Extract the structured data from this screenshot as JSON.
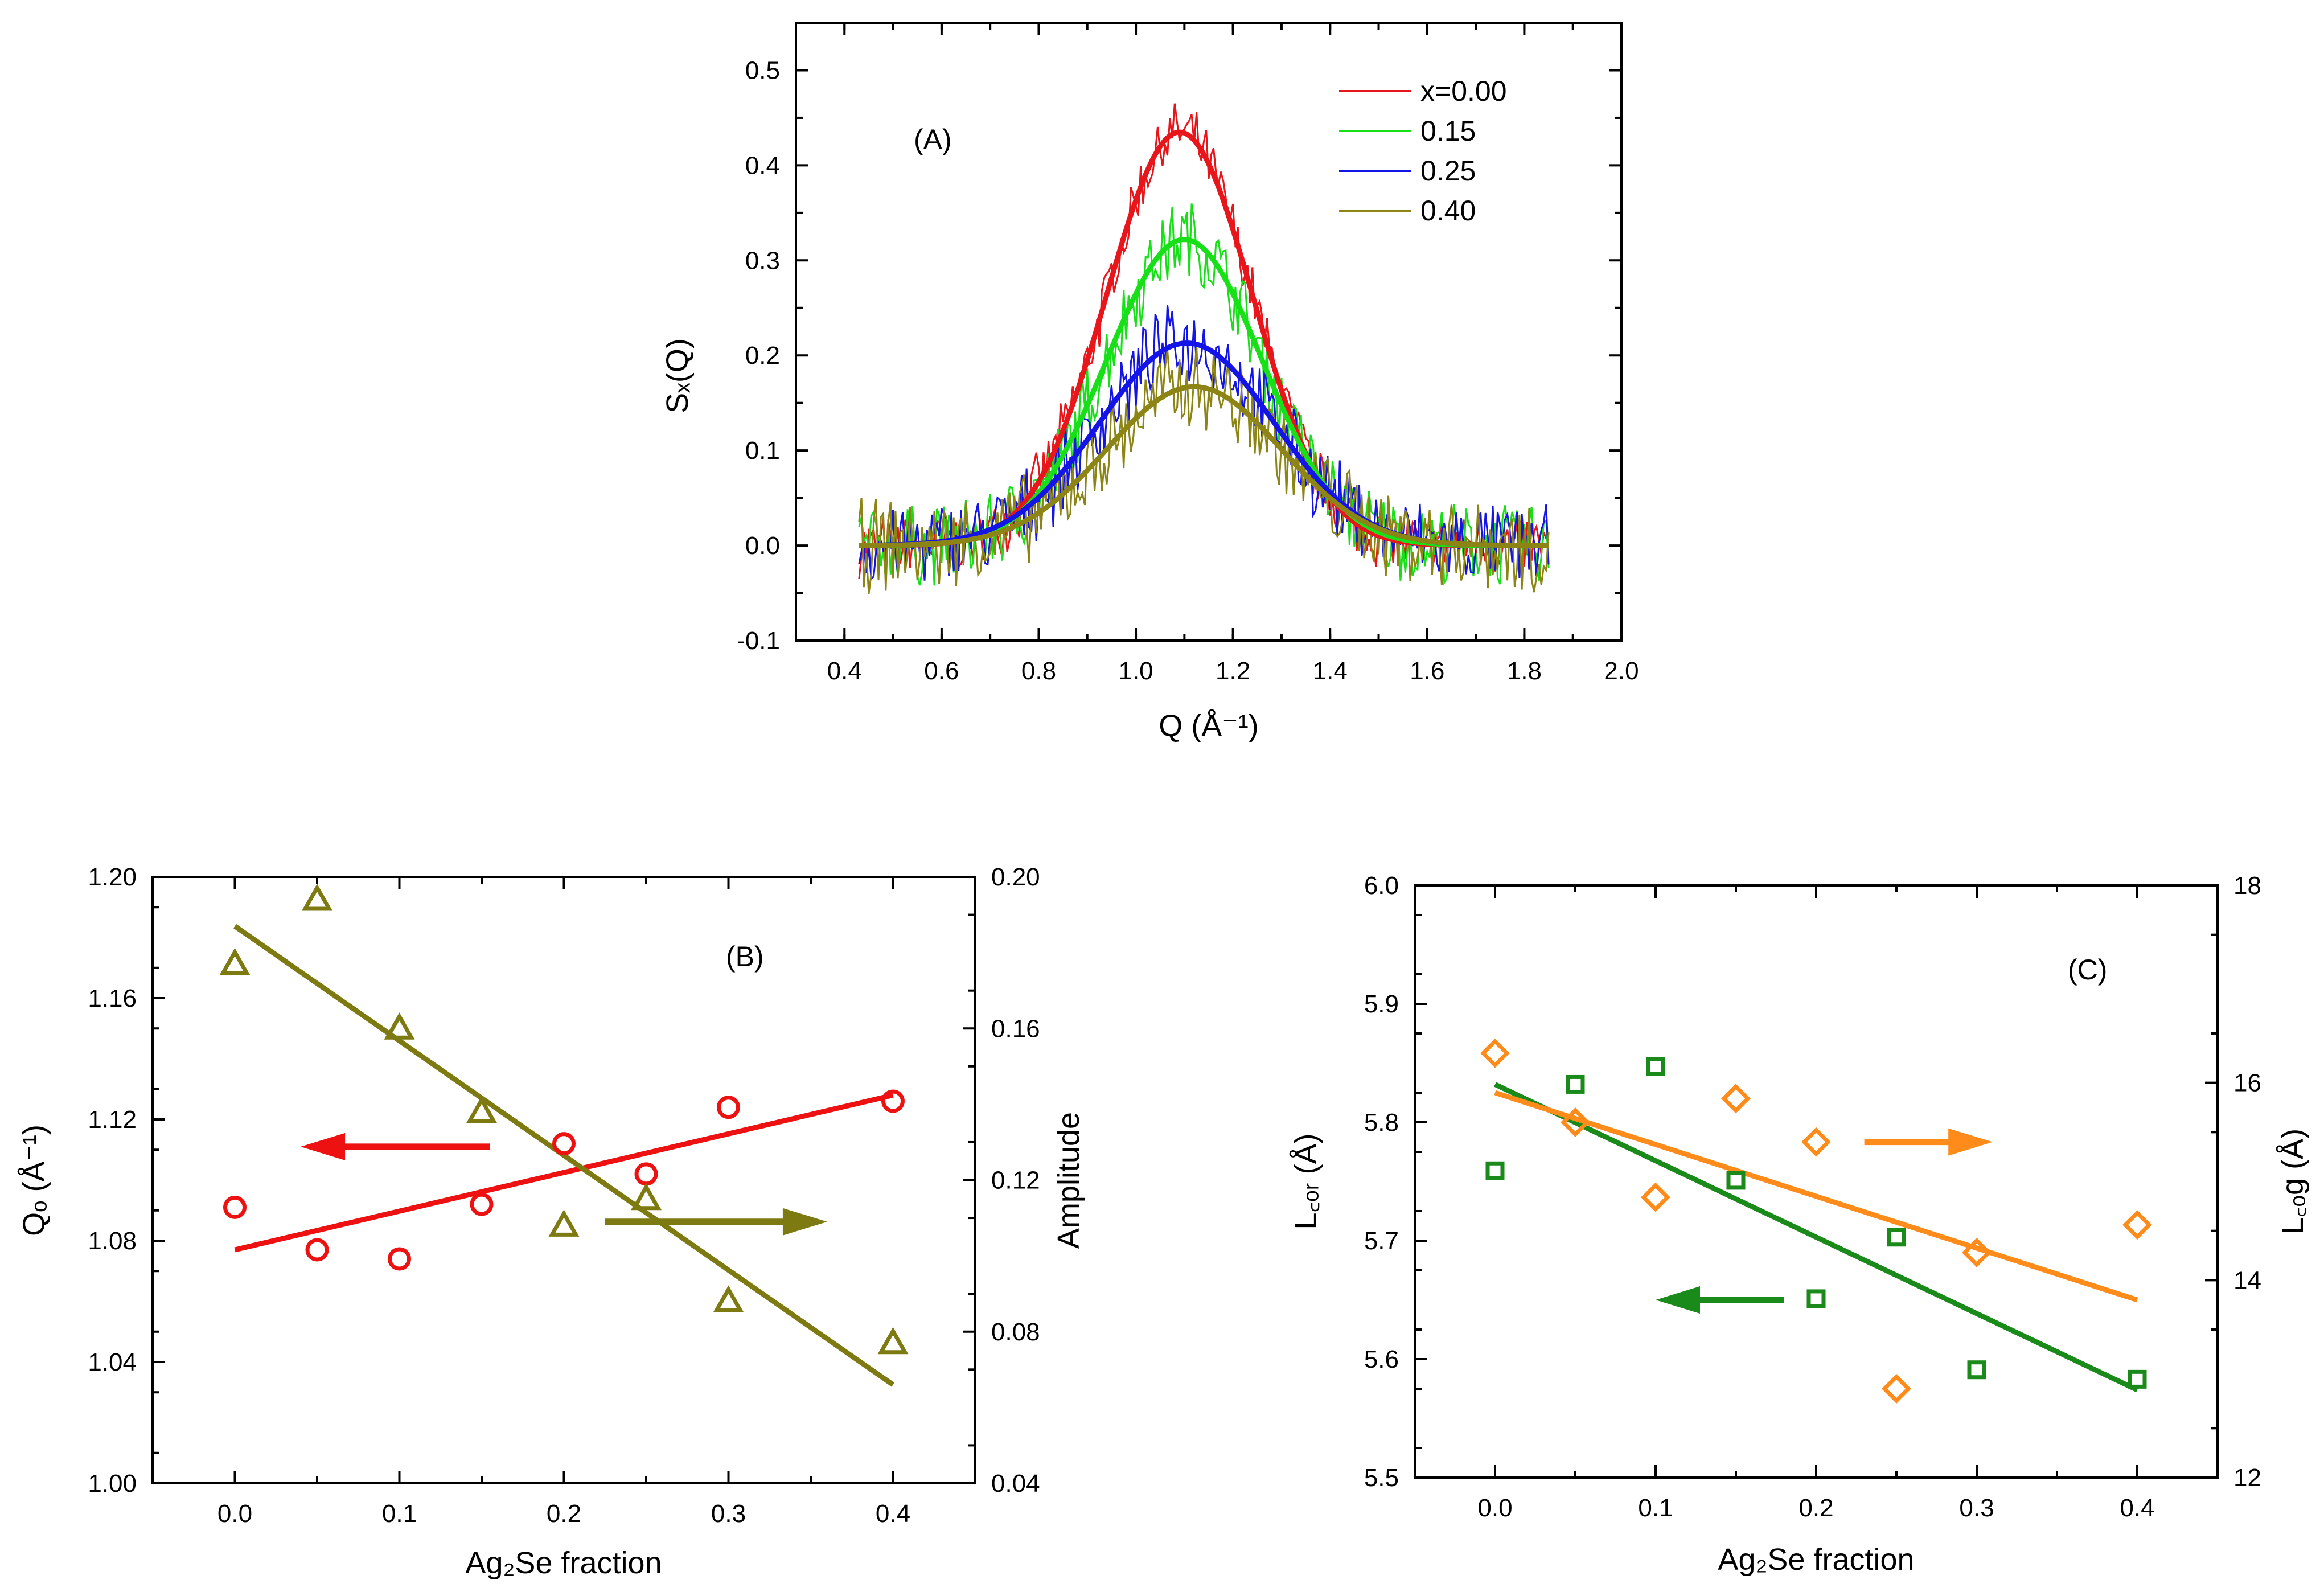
{
  "chart_data": [
    {
      "id": "A",
      "type": "line",
      "panel_label": "(A)",
      "xlabel": "Q (Å⁻¹)",
      "ylabel": "Sₓ(Q)",
      "xlim": [
        0.3,
        2.0
      ],
      "ylim": [
        -0.1,
        0.55
      ],
      "xticks": [
        "0.4",
        "0.6",
        "0.8",
        "1.0",
        "1.2",
        "1.4",
        "1.6",
        "1.8",
        "2.0"
      ],
      "yticks": [
        "-0.1",
        "0.0",
        "0.1",
        "0.2",
        "0.3",
        "0.4",
        "0.5"
      ],
      "x_range": [
        0.43,
        1.85
      ],
      "legend_position": "top-right",
      "series": [
        {
          "name": "x=0.00",
          "color": "#e8161b",
          "fit": {
            "amplitude": 0.435,
            "center": 1.09,
            "sigma": 0.15
          },
          "noise_amplitude": 0.03
        },
        {
          "name": "0.15",
          "color": "#18e018",
          "fit": {
            "amplitude": 0.322,
            "center": 1.1,
            "sigma": 0.16
          },
          "noise_amplitude": 0.04
        },
        {
          "name": "0.25",
          "color": "#1414e6",
          "fit": {
            "amplitude": 0.213,
            "center": 1.105,
            "sigma": 0.18
          },
          "noise_amplitude": 0.04
        },
        {
          "name": "0.40",
          "color": "#8c8515",
          "fit": {
            "amplitude": 0.167,
            "center": 1.12,
            "sigma": 0.18
          },
          "noise_amplitude": 0.045
        }
      ]
    },
    {
      "id": "B",
      "type": "scatter",
      "panel_label": "(B)",
      "xlabel": "Ag₂Se fraction",
      "ylabel_left": "Qₒ (Å⁻¹)",
      "ylabel_right": "Amplitude",
      "xlim": [
        -0.05,
        0.45
      ],
      "ylim_left": [
        1.0,
        1.2
      ],
      "ylim_right": [
        0.04,
        0.2
      ],
      "xticks": [
        "0.0",
        "0.1",
        "0.2",
        "0.3",
        "0.4"
      ],
      "yticks_left": [
        "1.00",
        "1.04",
        "1.08",
        "1.12",
        "1.16",
        "1.20"
      ],
      "yticks_right": [
        "0.04",
        "0.08",
        "0.12",
        "0.16",
        "0.20"
      ],
      "series": [
        {
          "name": "Q0",
          "axis": "left",
          "marker": "circle",
          "color": "#ee1111",
          "x": [
            0.0,
            0.05,
            0.1,
            0.15,
            0.2,
            0.25,
            0.3,
            0.4
          ],
          "y": [
            1.091,
            1.077,
            1.074,
            1.092,
            1.112,
            1.102,
            1.124,
            1.126
          ],
          "fit": {
            "x": [
              0.0,
              0.4
            ],
            "y": [
              1.077,
              1.128
            ]
          }
        },
        {
          "name": "Amplitude",
          "axis": "right",
          "marker": "triangle",
          "color": "#7e7a12",
          "x": [
            0.0,
            0.05,
            0.1,
            0.15,
            0.2,
            0.25,
            0.3,
            0.4
          ],
          "y": [
            0.177,
            0.194,
            0.16,
            0.138,
            0.108,
            0.115,
            0.088,
            0.077
          ],
          "fit": {
            "x": [
              0.0,
              0.4
            ],
            "y": [
              0.187,
              0.066
            ]
          }
        }
      ],
      "arrows": [
        {
          "series": "Q0",
          "direction": "left",
          "x_from": 0.155,
          "x_to": 0.04,
          "y": 1.111,
          "axis": "left"
        },
        {
          "series": "Amplitude",
          "direction": "right",
          "x_from": 0.225,
          "x_to": 0.36,
          "y": 0.109,
          "axis": "right"
        }
      ]
    },
    {
      "id": "C",
      "type": "scatter",
      "panel_label": "(C)",
      "xlabel": "Ag₂Se fraction",
      "ylabel_left": "L꜀ₒᵣ (Å)",
      "ylabel_right": "L꜀ₒg (Å)",
      "xlim": [
        -0.05,
        0.45
      ],
      "ylim_left": [
        5.5,
        6.0
      ],
      "ylim_right": [
        12,
        18
      ],
      "xticks": [
        "0.0",
        "0.1",
        "0.2",
        "0.3",
        "0.4"
      ],
      "yticks_left": [
        "5.5",
        "5.6",
        "5.7",
        "5.8",
        "5.9",
        "6.0"
      ],
      "yticks_right": [
        "12",
        "14",
        "16",
        "18"
      ],
      "series": [
        {
          "name": "Lcor",
          "axis": "left",
          "marker": "square",
          "color": "#1a8a1a",
          "x": [
            0.0,
            0.05,
            0.1,
            0.15,
            0.2,
            0.25,
            0.3,
            0.4
          ],
          "y": [
            5.759,
            5.832,
            5.847,
            5.751,
            5.651,
            5.703,
            5.591,
            5.583
          ],
          "fit": {
            "x": [
              0.0,
              0.4
            ],
            "y": [
              5.832,
              5.574
            ]
          }
        },
        {
          "name": "Lcog",
          "axis": "right",
          "marker": "diamond",
          "color": "#ff8c1a",
          "x": [
            0.0,
            0.05,
            0.1,
            0.15,
            0.2,
            0.25,
            0.3,
            0.4
          ],
          "y": [
            16.3,
            15.6,
            14.84,
            15.84,
            15.4,
            12.9,
            14.28,
            14.56
          ],
          "fit": {
            "x": [
              0.0,
              0.4
            ],
            "y": [
              15.9,
              13.8
            ]
          }
        }
      ],
      "arrows": [
        {
          "series": "Lcog",
          "direction": "right",
          "x_from": 0.23,
          "x_to": 0.31,
          "y": 15.4,
          "axis": "right"
        },
        {
          "series": "Lcor",
          "direction": "left",
          "x_from": 0.18,
          "x_to": 0.1,
          "y": 5.65,
          "axis": "left"
        }
      ]
    }
  ]
}
